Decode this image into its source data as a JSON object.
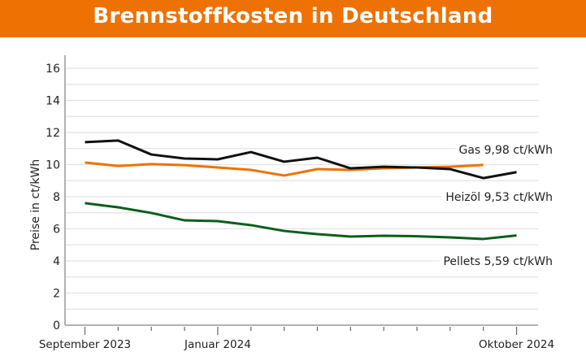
{
  "title": "Brennstoffkosten in Deutschland",
  "chart_data": {
    "type": "line",
    "title": "Brennstoffkosten in Deutschland",
    "ylabel": "Preise in ct/kWh",
    "xlabel": "",
    "ylim": [
      0,
      16
    ],
    "yticks": [
      0,
      2,
      4,
      6,
      8,
      10,
      12,
      14,
      16
    ],
    "grid": true,
    "x": [
      "2023-09",
      "2023-10",
      "2023-11",
      "2023-12",
      "2024-01",
      "2024-02",
      "2024-03",
      "2024-04",
      "2024-05",
      "2024-06",
      "2024-07",
      "2024-08",
      "2024-09",
      "2024-10"
    ],
    "xtick_labels": [
      {
        "x": "2023-09",
        "label": "September 2023"
      },
      {
        "x": "2024-01",
        "label": "Januar 2024"
      },
      {
        "x": "2024-10",
        "label": "Oktober 2024"
      }
    ],
    "series": [
      {
        "name": "Gas",
        "color": "#ee7203",
        "end_label": "9,98 ct/kWh",
        "values": [
          10.13,
          9.92,
          10.03,
          9.97,
          9.82,
          9.67,
          9.32,
          9.72,
          9.67,
          9.77,
          9.82,
          9.87,
          9.98,
          null
        ]
      },
      {
        "name": "Heizöl",
        "color": "#111111",
        "end_label": "9,53 ct/kWh",
        "values": [
          11.4,
          11.5,
          10.63,
          10.38,
          10.33,
          10.78,
          10.18,
          10.43,
          9.77,
          9.87,
          9.82,
          9.72,
          9.16,
          9.53
        ]
      },
      {
        "name": "Pellets",
        "color": "#0b5e1c",
        "end_label": "5,59 ct/kWh",
        "values": [
          7.6,
          7.34,
          6.99,
          6.53,
          6.48,
          6.23,
          5.87,
          5.67,
          5.52,
          5.57,
          5.54,
          5.47,
          5.37,
          5.59
        ]
      }
    ]
  }
}
